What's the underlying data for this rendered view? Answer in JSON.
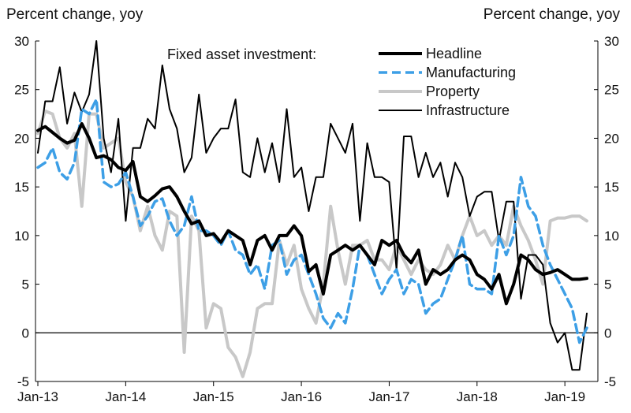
{
  "chart_data": {
    "type": "line",
    "ylabel_left": "Percent change, yoy",
    "ylabel_right": "Percent change, yoy",
    "legend_title": "Fixed asset investment:",
    "legend_position": "top-center",
    "grid": false,
    "ylim": [
      -5,
      30
    ],
    "y_ticks": [
      30,
      25,
      20,
      15,
      10,
      5,
      0,
      -5
    ],
    "x_range": [
      "2013-01",
      "2019-04"
    ],
    "x_tick_labels": [
      "Jan-13",
      "Jan-14",
      "Jan-15",
      "Jan-16",
      "Jan-17",
      "Jan-18",
      "Jan-19"
    ],
    "series": [
      {
        "name": "Headline",
        "color": "#000000",
        "style": "solid-thick",
        "x": [
          "2013-01",
          "2013-02",
          "2013-03",
          "2013-04",
          "2013-05",
          "2013-06",
          "2013-07",
          "2013-08",
          "2013-09",
          "2013-10",
          "2013-11",
          "2013-12",
          "2014-01",
          "2014-02",
          "2014-03",
          "2014-04",
          "2014-05",
          "2014-06",
          "2014-07",
          "2014-08",
          "2014-09",
          "2014-10",
          "2014-11",
          "2014-12",
          "2015-01",
          "2015-02",
          "2015-03",
          "2015-04",
          "2015-05",
          "2015-06",
          "2015-07",
          "2015-08",
          "2015-09",
          "2015-10",
          "2015-11",
          "2015-12",
          "2016-01",
          "2016-02",
          "2016-03",
          "2016-04",
          "2016-05",
          "2016-06",
          "2016-07",
          "2016-08",
          "2016-09",
          "2016-10",
          "2016-11",
          "2016-12",
          "2017-01",
          "2017-02",
          "2017-03",
          "2017-04",
          "2017-05",
          "2017-06",
          "2017-07",
          "2017-08",
          "2017-09",
          "2017-10",
          "2017-11",
          "2017-12",
          "2018-01",
          "2018-02",
          "2018-03",
          "2018-04",
          "2018-05",
          "2018-06",
          "2018-07",
          "2018-08",
          "2018-09",
          "2018-10",
          "2018-11",
          "2018-12",
          "2019-01",
          "2019-02",
          "2019-03",
          "2019-04"
        ],
        "y": [
          20.8,
          21.2,
          20.6,
          20.0,
          19.5,
          19.8,
          21.5,
          20.0,
          18.0,
          18.2,
          17.8,
          17.0,
          16.7,
          17.6,
          14.0,
          13.5,
          14.1,
          14.8,
          15.0,
          14.0,
          12.5,
          11.2,
          11.5,
          10.0,
          10.2,
          9.3,
          10.5,
          10.0,
          9.5,
          7.0,
          9.5,
          10.0,
          8.5,
          10.0,
          10.0,
          11.0,
          10.0,
          6.3,
          7.0,
          4.0,
          8.0,
          8.5,
          9.0,
          8.5,
          9.0,
          8.0,
          7.0,
          9.5,
          9.0,
          9.5,
          8.0,
          7.2,
          8.5,
          5.0,
          6.5,
          6.0,
          6.5,
          7.5,
          8.0,
          7.5,
          6.0,
          5.5,
          4.5,
          6.0,
          3.0,
          5.0,
          8.0,
          7.5,
          6.5,
          6.0,
          6.2,
          6.5,
          6.0,
          5.5,
          5.5,
          5.6
        ]
      },
      {
        "name": "Manufacturing",
        "color": "#3d9fe6",
        "style": "dashed",
        "x": [
          "2013-01",
          "2013-02",
          "2013-03",
          "2013-04",
          "2013-05",
          "2013-06",
          "2013-07",
          "2013-08",
          "2013-09",
          "2013-10",
          "2013-11",
          "2013-12",
          "2014-01",
          "2014-02",
          "2014-03",
          "2014-04",
          "2014-05",
          "2014-06",
          "2014-07",
          "2014-08",
          "2014-09",
          "2014-10",
          "2014-11",
          "2014-12",
          "2015-01",
          "2015-02",
          "2015-03",
          "2015-04",
          "2015-05",
          "2015-06",
          "2015-07",
          "2015-08",
          "2015-09",
          "2015-10",
          "2015-11",
          "2015-12",
          "2016-01",
          "2016-02",
          "2016-03",
          "2016-04",
          "2016-05",
          "2016-06",
          "2016-07",
          "2016-08",
          "2016-09",
          "2016-10",
          "2016-11",
          "2016-12",
          "2017-01",
          "2017-02",
          "2017-03",
          "2017-04",
          "2017-05",
          "2017-06",
          "2017-07",
          "2017-08",
          "2017-09",
          "2017-10",
          "2017-11",
          "2017-12",
          "2018-01",
          "2018-02",
          "2018-03",
          "2018-04",
          "2018-05",
          "2018-06",
          "2018-07",
          "2018-08",
          "2018-09",
          "2018-10",
          "2018-11",
          "2018-12",
          "2019-01",
          "2019-02",
          "2019-03",
          "2019-04"
        ],
        "y": [
          17.0,
          17.5,
          19.0,
          16.5,
          15.8,
          17.5,
          23.0,
          22.5,
          24.0,
          15.5,
          15.0,
          15.3,
          16.5,
          14.0,
          11.0,
          12.0,
          13.5,
          13.8,
          11.5,
          10.0,
          11.0,
          14.0,
          10.5,
          10.5,
          10.0,
          9.0,
          10.5,
          8.5,
          8.0,
          6.0,
          7.0,
          4.5,
          9.0,
          9.5,
          6.0,
          7.5,
          8.0,
          6.0,
          4.0,
          1.5,
          0.5,
          2.0,
          1.0,
          4.5,
          9.0,
          8.0,
          6.0,
          4.0,
          5.5,
          6.5,
          4.0,
          5.5,
          5.0,
          2.0,
          3.0,
          3.5,
          5.5,
          7.5,
          10.0,
          5.0,
          4.5,
          4.5,
          4.0,
          10.0,
          8.0,
          10.0,
          16.0,
          13.0,
          12.0,
          9.0,
          7.0,
          5.5,
          4.0,
          2.5,
          -1.0,
          0.5
        ]
      },
      {
        "name": "Property",
        "color": "#c8c8c8",
        "style": "solid-thick",
        "x": [
          "2013-01",
          "2013-02",
          "2013-03",
          "2013-04",
          "2013-05",
          "2013-06",
          "2013-07",
          "2013-08",
          "2013-09",
          "2013-10",
          "2013-11",
          "2013-12",
          "2014-01",
          "2014-02",
          "2014-03",
          "2014-04",
          "2014-05",
          "2014-06",
          "2014-07",
          "2014-08",
          "2014-09",
          "2014-10",
          "2014-11",
          "2014-12",
          "2015-01",
          "2015-02",
          "2015-03",
          "2015-04",
          "2015-05",
          "2015-06",
          "2015-07",
          "2015-08",
          "2015-09",
          "2015-10",
          "2015-11",
          "2015-12",
          "2016-01",
          "2016-02",
          "2016-03",
          "2016-04",
          "2016-05",
          "2016-06",
          "2016-07",
          "2016-08",
          "2016-09",
          "2016-10",
          "2016-11",
          "2016-12",
          "2017-01",
          "2017-02",
          "2017-03",
          "2017-04",
          "2017-05",
          "2017-06",
          "2017-07",
          "2017-08",
          "2017-09",
          "2017-10",
          "2017-11",
          "2017-12",
          "2018-01",
          "2018-02",
          "2018-03",
          "2018-04",
          "2018-05",
          "2018-06",
          "2018-07",
          "2018-08",
          "2018-09",
          "2018-10",
          "2018-11",
          "2018-12",
          "2019-01",
          "2019-02",
          "2019-03",
          "2019-04"
        ],
        "y": [
          20.5,
          22.8,
          22.5,
          20.0,
          19.0,
          20.5,
          13.0,
          22.5,
          22.5,
          19.0,
          19.5,
          20.0,
          15.5,
          14.0,
          10.5,
          13.0,
          10.0,
          8.5,
          12.5,
          12.0,
          -2.0,
          12.0,
          10.5,
          0.5,
          3.0,
          2.5,
          -1.5,
          -2.5,
          -4.5,
          -2.0,
          2.5,
          3.0,
          3.0,
          9.5,
          7.0,
          9.0,
          4.5,
          2.5,
          1.0,
          5.0,
          13.0,
          8.5,
          5.0,
          9.0,
          9.0,
          9.5,
          7.5,
          7.5,
          6.5,
          9.0,
          7.5,
          6.0,
          7.5,
          6.5,
          6.0,
          7.0,
          9.0,
          7.5,
          10.0,
          12.0,
          10.0,
          10.5,
          9.0,
          10.0,
          9.0,
          13.0,
          11.0,
          9.5,
          7.5,
          5.0,
          11.5,
          11.8,
          11.8,
          12.0,
          12.0,
          11.5
        ]
      },
      {
        "name": "Infrastructure",
        "color": "#000000",
        "style": "solid-thin",
        "x": [
          "2013-01",
          "2013-02",
          "2013-03",
          "2013-04",
          "2013-05",
          "2013-06",
          "2013-07",
          "2013-08",
          "2013-09",
          "2013-10",
          "2013-11",
          "2013-12",
          "2014-01",
          "2014-02",
          "2014-03",
          "2014-04",
          "2014-05",
          "2014-06",
          "2014-07",
          "2014-08",
          "2014-09",
          "2014-10",
          "2014-11",
          "2014-12",
          "2015-01",
          "2015-02",
          "2015-03",
          "2015-04",
          "2015-05",
          "2015-06",
          "2015-07",
          "2015-08",
          "2015-09",
          "2015-10",
          "2015-11",
          "2015-12",
          "2016-01",
          "2016-02",
          "2016-03",
          "2016-04",
          "2016-05",
          "2016-06",
          "2016-07",
          "2016-08",
          "2016-09",
          "2016-10",
          "2016-11",
          "2016-12",
          "2017-01",
          "2017-02",
          "2017-03",
          "2017-04",
          "2017-05",
          "2017-06",
          "2017-07",
          "2017-08",
          "2017-09",
          "2017-10",
          "2017-11",
          "2017-12",
          "2018-01",
          "2018-02",
          "2018-03",
          "2018-04",
          "2018-05",
          "2018-06",
          "2018-07",
          "2018-08",
          "2018-09",
          "2018-10",
          "2018-11",
          "2018-12",
          "2019-01",
          "2019-02",
          "2019-03",
          "2019-04"
        ],
        "y": [
          18.5,
          23.8,
          23.8,
          27.3,
          21.5,
          24.7,
          22.7,
          24.5,
          30.0,
          20.0,
          16.5,
          22.0,
          11.5,
          19.0,
          19.0,
          22.0,
          21.0,
          27.5,
          23.0,
          21.0,
          16.5,
          18.0,
          24.5,
          18.5,
          20.0,
          21.0,
          21.0,
          24.0,
          16.5,
          16.0,
          20.0,
          16.5,
          19.5,
          15.5,
          23.0,
          16.0,
          17.0,
          12.5,
          16.0,
          16.0,
          21.5,
          20.0,
          18.5,
          21.5,
          11.5,
          19.5,
          16.0,
          16.0,
          15.5,
          6.5,
          20.2,
          20.2,
          16.0,
          18.5,
          16.0,
          17.5,
          14.0,
          17.5,
          16.0,
          12.0,
          14.0,
          14.5,
          14.5,
          9.5,
          13.5,
          13.5,
          3.5,
          8.0,
          8.0,
          7.0,
          1.0,
          -1.0,
          0.0,
          -3.8,
          -3.8,
          2.0
        ]
      }
    ]
  }
}
